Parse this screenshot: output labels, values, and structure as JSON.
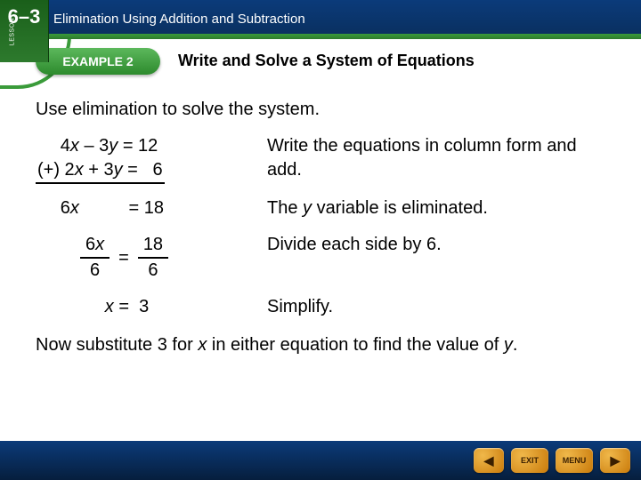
{
  "lesson": {
    "label": "LESSON",
    "number": "6–3"
  },
  "topbar": {
    "title": "Elimination Using Addition and Subtraction"
  },
  "example": {
    "badge": "EXAMPLE 2",
    "heading": "Write and Solve a System of Equations"
  },
  "body": {
    "prompt": "Use elimination to solve the system.",
    "steps": [
      {
        "left_lines": [
          "     4x – 3y = 12",
          "(+) 2x + 3y =   6"
        ],
        "right": "Write the equations in column form and add."
      },
      {
        "left_lines": [
          "     6x          = 18"
        ],
        "right": "The y variable is eliminated."
      },
      {
        "frac": {
          "l_num": "6x",
          "l_den": "6",
          "r_num": "18",
          "r_den": "6"
        },
        "right": "Divide each side by 6."
      },
      {
        "left_lines": [
          "              x =  3"
        ],
        "right": "Simplify."
      }
    ],
    "closing": "Now substitute 3 for x in either equation to find the value of y."
  },
  "nav": {
    "prev_icon": "◀",
    "exit_label": "EXIT",
    "menu_label": "MENU",
    "next_icon": "▶"
  },
  "colors": {
    "top_bar_from": "#0b3b7a",
    "top_bar_to": "#0a2f5e",
    "green_from": "#5cb85c",
    "green_to": "#2d8a2d",
    "gold_from": "#f0b84a",
    "gold_to": "#c97a0a"
  }
}
